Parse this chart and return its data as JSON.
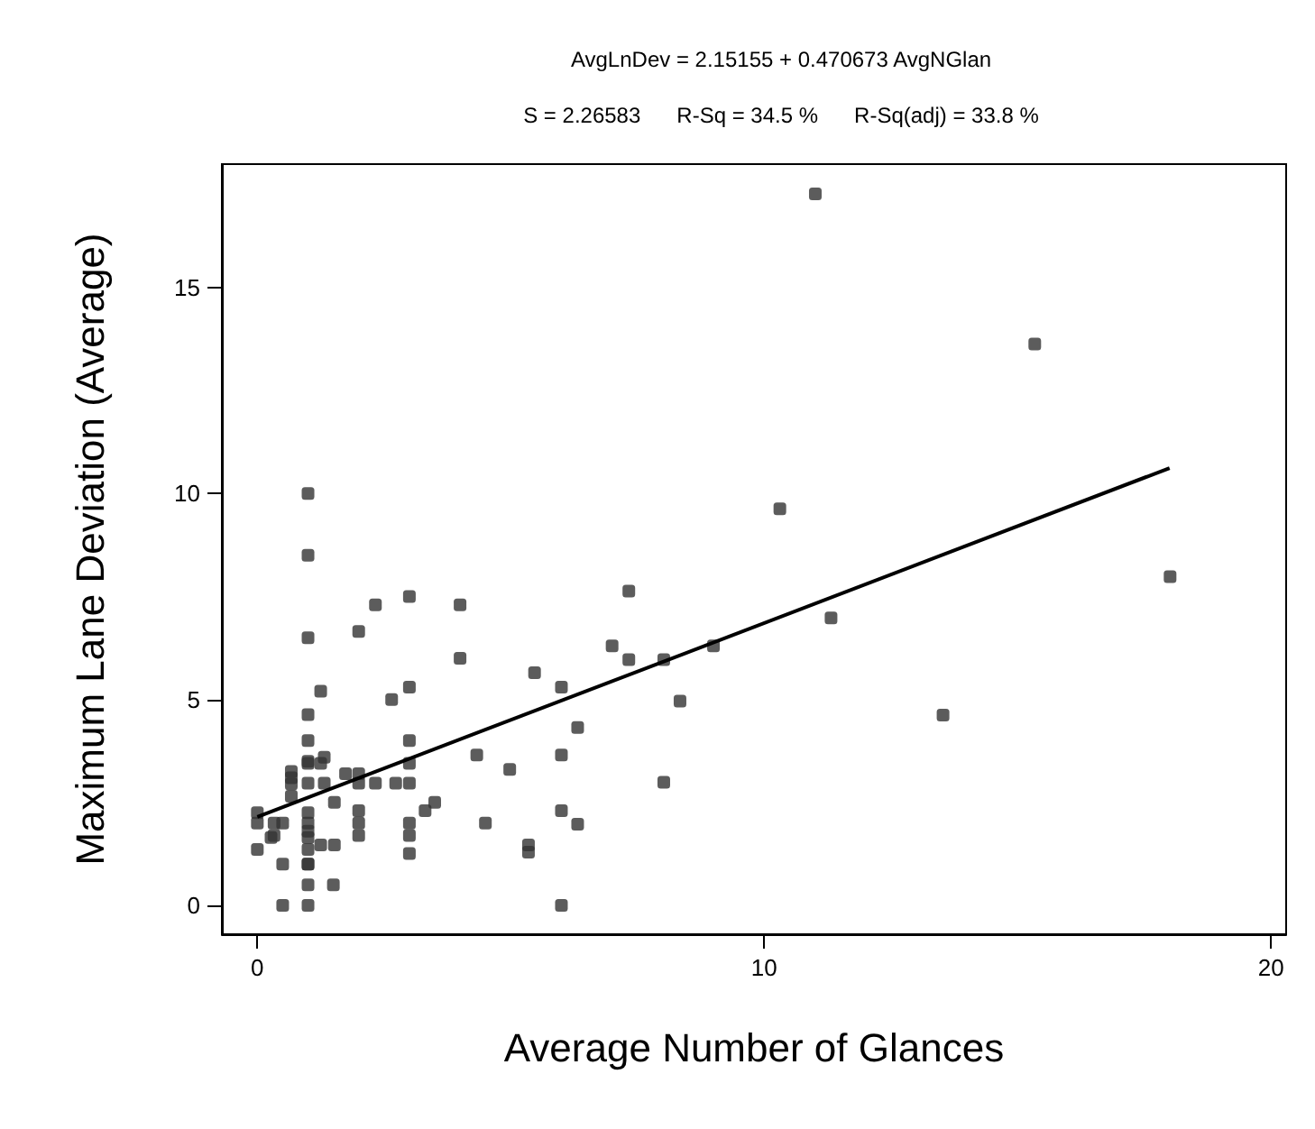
{
  "chart_data": {
    "type": "scatter",
    "title": "AvgLnDev = 2.15155 + 0.470673 AvgNGlan",
    "subtitle": "S = 2.26583      R-Sq = 34.5 %      R-Sq(adj) = 33.8 %",
    "xlabel": "Average Number of Glances",
    "ylabel": "Maximum Lane Deviation (Average)",
    "xlim": [
      -0.7,
      20.3
    ],
    "ylim": [
      -0.7,
      18
    ],
    "xticks": [
      0,
      10,
      20
    ],
    "yticks": [
      0,
      5,
      10,
      15
    ],
    "grid": false,
    "marker": "square",
    "series": [
      {
        "type": "scatter",
        "color": "#333333",
        "x": [
          1,
          1,
          1,
          2.33,
          3,
          4,
          2,
          4,
          5.47,
          6,
          1.25,
          3,
          2.65,
          1,
          1,
          3,
          1,
          1,
          1.32,
          1.25,
          3,
          0.67,
          0.67,
          0.67,
          1,
          1.32,
          1.74,
          2,
          2,
          2.33,
          2.73,
          3,
          4.33,
          4.98,
          6,
          0.67,
          0,
          0,
          0.33,
          0.5,
          1,
          1,
          1,
          1,
          1,
          1,
          1.52,
          2,
          2,
          2,
          3,
          3,
          3,
          3.31,
          3.5,
          4.5,
          5.35,
          5.35,
          6,
          0.27,
          0.33,
          0,
          1.25,
          1.52,
          0.5,
          1,
          1,
          1.5,
          0.5,
          1,
          6,
          7.33,
          7,
          7.33,
          8.02,
          9,
          11.32,
          6.32,
          8.34,
          8.02,
          6.32,
          11.01,
          15.34,
          10.31,
          18.01,
          13.53
        ],
        "values": [
          10,
          8.5,
          6.5,
          7.3,
          7.5,
          7.3,
          6.65,
          6,
          5.65,
          5.3,
          5.2,
          5.3,
          5,
          4.63,
          4,
          4,
          3.5,
          3.45,
          3.6,
          3.45,
          3.45,
          3.25,
          3.1,
          2.95,
          2.97,
          2.97,
          3.2,
          3.2,
          2.97,
          2.97,
          2.97,
          2.97,
          3.65,
          3.3,
          3.65,
          2.65,
          2.25,
          2,
          2,
          2,
          2.25,
          2,
          1.8,
          1.65,
          1.36,
          1,
          2.5,
          2.3,
          2,
          1.7,
          2,
          1.7,
          1.26,
          2.3,
          2.5,
          2,
          1.47,
          1.29,
          2.3,
          1.65,
          1.7,
          1.36,
          1.47,
          1.47,
          1,
          1,
          0.5,
          0.5,
          0,
          0,
          0,
          7.63,
          6.3,
          5.97,
          5.97,
          6.3,
          6.98,
          4.32,
          4.96,
          2.99,
          1.97,
          17.28,
          13.63,
          9.63,
          7.98,
          4.62
        ]
      },
      {
        "type": "line",
        "color": "#000000",
        "marker": "none",
        "line_style": "solid",
        "x": [
          0,
          18
        ],
        "values": [
          2.15,
          10.62
        ]
      }
    ]
  }
}
